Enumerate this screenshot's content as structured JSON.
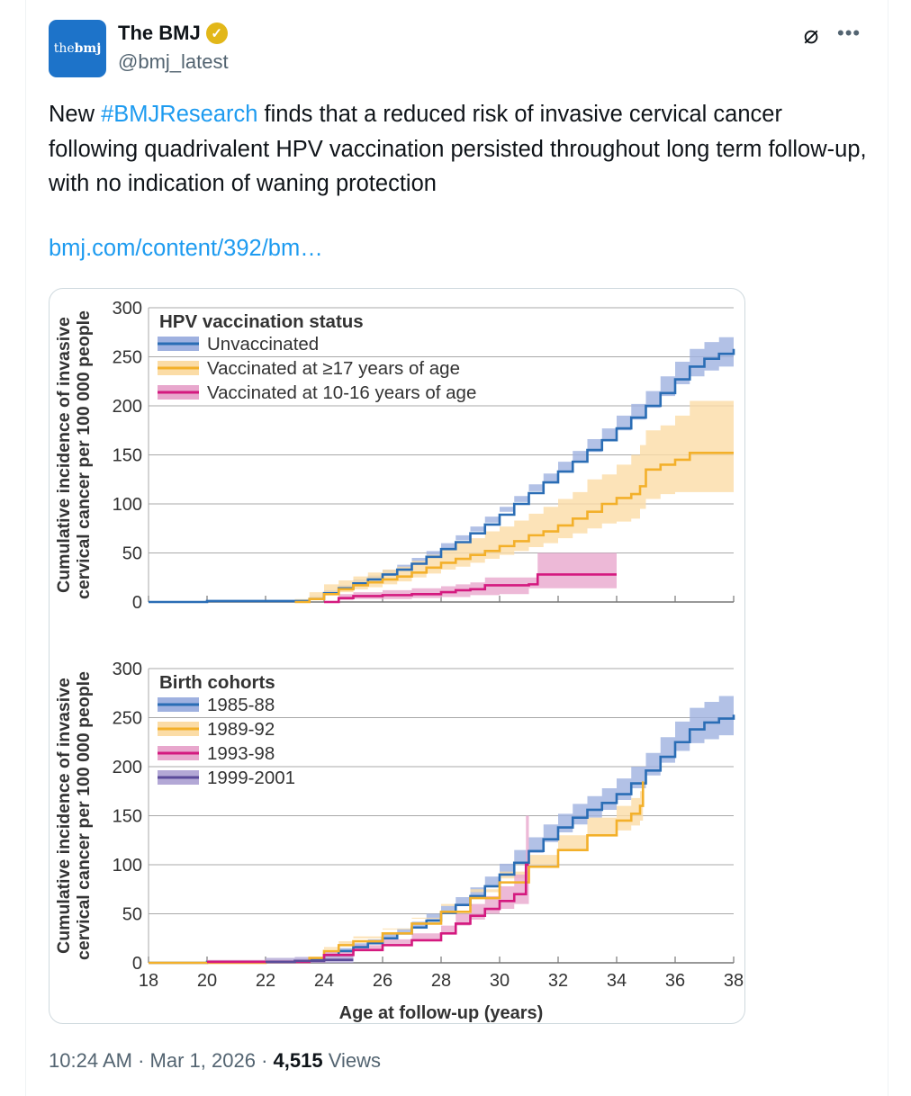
{
  "tweet": {
    "author_name": "The BMJ",
    "handle": "@bmj_latest",
    "avatar_text_light": "the",
    "avatar_text_bold": "bmj",
    "text_before": "New ",
    "hashtag": "#BMJResearch",
    "text_after": " finds that a reduced risk of invasive cervical cancer following quadrivalent HPV vaccination persisted throughout long term follow-up, with no indication of waning protection",
    "link": "bmj.com/content/392/bm…",
    "time": "10:24 AM",
    "date": "Mar 1, 2026",
    "views_count": "4,515",
    "views_label": "Views",
    "separator": "·"
  },
  "chart_data": [
    {
      "type": "line",
      "legend_title": "HPV vaccination status",
      "ylabel": [
        "Cumulative incidence of invasive",
        "cervical cancer per 100 000 people"
      ],
      "xlabel": "",
      "ylim": [
        0,
        300
      ],
      "xlim": [
        18,
        38
      ],
      "yticks": [
        0,
        50,
        100,
        150,
        200,
        250,
        300
      ],
      "xticks": [
        18,
        20,
        22,
        24,
        26,
        28,
        30,
        32,
        34,
        36,
        38
      ],
      "show_xtick_labels": false,
      "series": [
        {
          "name": "Unvaccinated",
          "color": "#2a6db5",
          "band": "#9fb1e0",
          "x": [
            18,
            20,
            22,
            23,
            23.5,
            24,
            24.5,
            25,
            25.5,
            26,
            26.5,
            27,
            27.5,
            28,
            28.5,
            29,
            29.5,
            30,
            30.5,
            31,
            31.5,
            32,
            32.5,
            33,
            33.5,
            34,
            34.5,
            35,
            35.5,
            36,
            36.5,
            37,
            37.5,
            38
          ],
          "y": [
            0,
            1,
            1,
            1,
            3,
            9,
            14,
            19,
            23,
            28,
            33,
            39,
            46,
            54,
            61,
            70,
            79,
            89,
            100,
            111,
            122,
            133,
            143,
            155,
            165,
            177,
            188,
            200,
            213,
            227,
            240,
            248,
            253,
            258
          ],
          "hi": [
            0,
            2,
            2,
            2,
            5,
            12,
            17,
            23,
            27,
            33,
            38,
            45,
            52,
            60,
            68,
            77,
            87,
            97,
            108,
            120,
            131,
            143,
            154,
            166,
            177,
            190,
            202,
            215,
            230,
            245,
            258,
            265,
            270,
            275
          ],
          "lo": [
            0,
            0,
            0,
            0,
            1,
            6,
            11,
            15,
            19,
            24,
            28,
            34,
            40,
            48,
            55,
            63,
            72,
            81,
            92,
            102,
            113,
            123,
            133,
            144,
            153,
            164,
            175,
            186,
            198,
            210,
            222,
            230,
            236,
            240
          ]
        },
        {
          "name": "Vaccinated at ≥17 years of age",
          "color": "#f3b02a",
          "band": "#fbdca6",
          "x": [
            23,
            23.5,
            24,
            24.5,
            25,
            25.5,
            26,
            26.5,
            27,
            27.5,
            28,
            28.5,
            29,
            29.5,
            30,
            30.5,
            31,
            31.5,
            32,
            32.5,
            33,
            33.5,
            34,
            34.5,
            34.8,
            35,
            35.5,
            36,
            36.5,
            38
          ],
          "y": [
            0,
            3,
            8,
            13,
            17,
            20,
            23,
            26,
            30,
            35,
            40,
            44,
            48,
            52,
            57,
            62,
            68,
            72,
            78,
            85,
            92,
            100,
            106,
            110,
            118,
            135,
            140,
            145,
            152,
            152
          ],
          "hi": [
            3,
            10,
            18,
            22,
            26,
            30,
            33,
            36,
            42,
            48,
            55,
            60,
            65,
            72,
            77,
            83,
            90,
            97,
            105,
            112,
            125,
            130,
            140,
            150,
            160,
            175,
            180,
            190,
            205,
            205
          ],
          "lo": [
            0,
            0,
            3,
            7,
            10,
            13,
            15,
            18,
            21,
            25,
            29,
            33,
            36,
            40,
            44,
            48,
            52,
            56,
            60,
            65,
            70,
            75,
            80,
            82,
            85,
            95,
            105,
            110,
            112,
            112
          ]
        },
        {
          "name": "Vaccinated at 10-16 years of age",
          "color": "#d4197f",
          "band": "#e8a7cd",
          "x": [
            24,
            24.5,
            25,
            26,
            27,
            28,
            28.5,
            29,
            29.5,
            30,
            31,
            31.3,
            32,
            34
          ],
          "y": [
            0,
            4,
            6,
            7,
            8,
            10,
            12,
            13,
            17,
            17,
            18,
            28,
            28,
            28
          ],
          "hi": [
            0,
            8,
            10,
            12,
            14,
            16,
            18,
            20,
            25,
            25,
            25,
            50,
            50,
            50
          ],
          "lo": [
            0,
            1,
            2,
            3,
            3,
            4,
            5,
            5,
            7,
            7,
            8,
            14,
            14,
            14
          ]
        }
      ]
    },
    {
      "type": "line",
      "legend_title": "Birth cohorts",
      "ylabel": [
        "Cumulative incidence of invasive",
        "cervical cancer per 100 000 people"
      ],
      "xlabel": "Age at follow-up (years)",
      "ylim": [
        0,
        300
      ],
      "xlim": [
        18,
        38
      ],
      "yticks": [
        0,
        50,
        100,
        150,
        200,
        250,
        300
      ],
      "xticks": [
        18,
        20,
        22,
        24,
        26,
        28,
        30,
        32,
        34,
        36,
        38
      ],
      "show_xtick_labels": true,
      "series": [
        {
          "name": "1985-88",
          "color": "#2a6db5",
          "band": "#9fb1e0",
          "x": [
            18,
            20,
            22,
            23,
            23.5,
            24,
            24.5,
            25,
            25.5,
            26,
            26.5,
            27,
            27.5,
            28,
            28.5,
            29,
            29.5,
            30,
            30.5,
            31,
            31.5,
            32,
            32.5,
            33,
            33.5,
            34,
            34.5,
            35,
            35.5,
            36,
            36.5,
            37,
            37.5,
            38
          ],
          "y": [
            0,
            1,
            1,
            1,
            3,
            8,
            12,
            16,
            20,
            25,
            30,
            36,
            43,
            51,
            59,
            68,
            78,
            90,
            102,
            114,
            126,
            138,
            148,
            156,
            163,
            172,
            183,
            196,
            210,
            225,
            238,
            245,
            249,
            253
          ],
          "hi": [
            0,
            2,
            2,
            2,
            5,
            11,
            15,
            20,
            24,
            30,
            35,
            42,
            50,
            58,
            67,
            77,
            88,
            101,
            115,
            128,
            141,
            152,
            162,
            170,
            178,
            188,
            200,
            214,
            230,
            246,
            260,
            266,
            272,
            276
          ],
          "lo": [
            0,
            0,
            0,
            0,
            1,
            5,
            9,
            12,
            16,
            21,
            25,
            31,
            37,
            44,
            51,
            59,
            68,
            79,
            90,
            101,
            112,
            123,
            133,
            141,
            148,
            156,
            166,
            178,
            191,
            204,
            216,
            224,
            228,
            232
          ]
        },
        {
          "name": "1989-92",
          "color": "#f3b02a",
          "band": "#fbdca6",
          "x": [
            18,
            22,
            23,
            23.5,
            24,
            24.5,
            25,
            26,
            27,
            28,
            29,
            30,
            31,
            32,
            33,
            34,
            34.5,
            34.8,
            34.9
          ],
          "y": [
            0,
            1,
            1,
            5,
            12,
            18,
            22,
            30,
            40,
            52,
            66,
            82,
            98,
            115,
            130,
            145,
            152,
            160,
            185
          ],
          "hi": [
            0,
            2,
            3,
            8,
            16,
            22,
            27,
            35,
            46,
            60,
            75,
            93,
            110,
            130,
            148,
            160,
            168,
            175,
            230
          ],
          "lo": [
            0,
            0,
            0,
            2,
            8,
            14,
            18,
            25,
            34,
            45,
            58,
            72,
            86,
            100,
            115,
            130,
            135,
            140,
            145
          ]
        },
        {
          "name": "1993-98",
          "color": "#d4197f",
          "band": "#e8a7cd",
          "x": [
            20,
            23,
            23.5,
            24,
            25,
            26,
            27,
            28,
            28.5,
            29,
            29.5,
            30,
            30.5,
            30.9,
            31
          ],
          "y": [
            1,
            1,
            2,
            8,
            13,
            18,
            23,
            30,
            40,
            48,
            55,
            63,
            70,
            100,
            100
          ],
          "hi": [
            3,
            3,
            5,
            12,
            18,
            24,
            30,
            38,
            50,
            60,
            68,
            78,
            90,
            150,
            150
          ],
          "lo": [
            0,
            0,
            0,
            4,
            9,
            13,
            17,
            23,
            31,
            38,
            44,
            50,
            55,
            60,
            60
          ]
        },
        {
          "name": "1999-2001",
          "color": "#5b4b9a",
          "band": "#b3a8d6",
          "x": [
            22,
            23,
            24,
            25
          ],
          "y": [
            1,
            2,
            3,
            3
          ],
          "hi": [
            5,
            6,
            8,
            8
          ],
          "lo": [
            0,
            0,
            0,
            0
          ]
        }
      ]
    }
  ]
}
